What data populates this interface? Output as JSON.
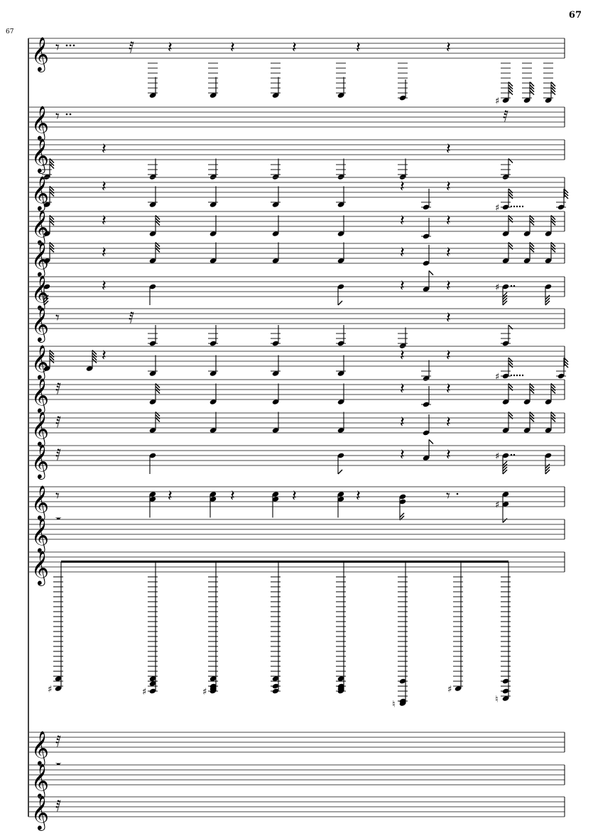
{
  "page_number": "67",
  "measure_number": "67",
  "staves": [
    {
      "clef": "treble",
      "events": [
        {
          "c": 1,
          "rest": "8",
          "dots": 3
        },
        {
          "c": 4,
          "rest": "32"
        },
        {
          "c": 5,
          "d": "q",
          "s": [
            -15
          ]
        },
        {
          "c": 6,
          "rest": "4"
        },
        {
          "c": 7,
          "d": "q",
          "s": [
            -15
          ]
        },
        {
          "c": 8,
          "rest": "4"
        },
        {
          "c": 9,
          "d": "q",
          "s": [
            -15
          ]
        },
        {
          "c": 10,
          "rest": "4"
        },
        {
          "c": 11,
          "d": "q",
          "s": [
            -15
          ]
        },
        {
          "c": 12,
          "rest": "4"
        },
        {
          "c": 13,
          "d": "q",
          "s": [
            -16
          ]
        },
        {
          "c": 15,
          "rest": "4"
        },
        {
          "c": 16,
          "d": "64",
          "s": [
            -17
          ],
          "acc": "sharp"
        },
        {
          "c": 17,
          "d": "64",
          "s": [
            -17
          ]
        },
        {
          "c": 18,
          "d": "64",
          "s": [
            -17
          ]
        }
      ]
    },
    {
      "clef": "treble",
      "events": [
        {
          "c": 1,
          "rest": "8",
          "dots": 2
        },
        {
          "c": 16,
          "rest": "32"
        }
      ]
    },
    {
      "clef": "treble",
      "events": [
        {
          "c": 0,
          "d": "32",
          "s": [
            -7
          ]
        },
        {
          "c": 3,
          "rest": "4"
        },
        {
          "c": 5,
          "d": "q",
          "s": [
            -7
          ]
        },
        {
          "c": 7,
          "d": "q",
          "s": [
            -7
          ]
        },
        {
          "c": 9,
          "d": "q",
          "s": [
            -7
          ]
        },
        {
          "c": 11,
          "d": "q",
          "s": [
            -7
          ]
        },
        {
          "c": 13,
          "d": "q",
          "s": [
            -7
          ]
        },
        {
          "c": 15,
          "rest": "4"
        },
        {
          "c": 16,
          "d": "8",
          "s": [
            -7
          ]
        }
      ]
    },
    {
      "clef": "treble",
      "events": [
        {
          "c": 0,
          "d": "32",
          "s": [
            -3
          ]
        },
        {
          "c": 3,
          "rest": "4"
        },
        {
          "c": 5,
          "d": "q",
          "s": [
            -3
          ]
        },
        {
          "c": 7,
          "d": "q",
          "s": [
            -3
          ]
        },
        {
          "c": 9,
          "d": "q",
          "s": [
            -3
          ]
        },
        {
          "c": 11,
          "d": "q",
          "s": [
            -3
          ]
        },
        {
          "c": 13,
          "rest": "4"
        },
        {
          "c": 14,
          "d": "q",
          "s": [
            -4
          ]
        },
        {
          "c": 15,
          "rest": "4"
        },
        {
          "c": 16,
          "d": "32",
          "s": [
            -4
          ],
          "acc": "sharp",
          "dots": 5
        },
        {
          "c": 20,
          "d": "32",
          "s": [
            -4
          ]
        }
      ]
    },
    {
      "clef": "treble",
      "events": [
        {
          "c": 0,
          "d": "32",
          "s": [
            -1
          ]
        },
        {
          "c": 3,
          "rest": "4"
        },
        {
          "c": 5,
          "d": "32",
          "s": [
            -1
          ]
        },
        {
          "c": 7,
          "d": "q",
          "s": [
            -1
          ]
        },
        {
          "c": 9,
          "d": "q",
          "s": [
            -1
          ]
        },
        {
          "c": 11,
          "d": "q",
          "s": [
            -1
          ]
        },
        {
          "c": 13,
          "rest": "4"
        },
        {
          "c": 14,
          "d": "q",
          "s": [
            -2
          ]
        },
        {
          "c": 15,
          "rest": "4"
        },
        {
          "c": 16,
          "d": "16",
          "s": [
            -1
          ]
        },
        {
          "c": 17,
          "d": "32",
          "s": [
            -1
          ]
        },
        {
          "c": 18,
          "d": "32",
          "s": [
            -1
          ]
        }
      ]
    },
    {
      "clef": "treble",
      "events": [
        {
          "c": 0,
          "d": "32",
          "s": [
            1
          ]
        },
        {
          "c": 3,
          "rest": "4"
        },
        {
          "c": 5,
          "d": "32",
          "s": [
            1
          ]
        },
        {
          "c": 7,
          "d": "q",
          "s": [
            1
          ]
        },
        {
          "c": 9,
          "d": "q",
          "s": [
            1
          ]
        },
        {
          "c": 11,
          "d": "q",
          "s": [
            1
          ]
        },
        {
          "c": 13,
          "rest": "4"
        },
        {
          "c": 14,
          "d": "q",
          "s": [
            0
          ]
        },
        {
          "c": 15,
          "rest": "4"
        },
        {
          "c": 16,
          "d": "16",
          "s": [
            1
          ]
        },
        {
          "c": 17,
          "d": "32",
          "s": [
            1
          ]
        },
        {
          "c": 18,
          "d": "32",
          "s": [
            1
          ]
        }
      ]
    },
    {
      "clef": "treble",
      "events": [
        {
          "c": 0,
          "d": "32",
          "s": [
            4
          ]
        },
        {
          "c": 3,
          "rest": "4"
        },
        {
          "c": 5,
          "d": "q",
          "s": [
            4
          ]
        },
        {
          "c": 11,
          "d": "8",
          "s": [
            4
          ]
        },
        {
          "c": 13,
          "rest": "4"
        },
        {
          "c": 14,
          "d": "8",
          "s": [
            3
          ]
        },
        {
          "c": 15,
          "rest": "4"
        },
        {
          "c": 16,
          "d": "64",
          "s": [
            4
          ],
          "acc": "sharp",
          "dots": 2
        },
        {
          "c": 18,
          "d": "32",
          "s": [
            4
          ]
        }
      ]
    },
    {
      "clef": "treble",
      "events": [
        {
          "c": 1,
          "rest": "8"
        },
        {
          "c": 4,
          "rest": "32"
        },
        {
          "c": 5,
          "d": "q",
          "s": [
            -6
          ]
        },
        {
          "c": 7,
          "d": "q",
          "s": [
            -6
          ]
        },
        {
          "c": 9,
          "d": "q",
          "s": [
            -6
          ]
        },
        {
          "c": 11,
          "d": "q",
          "s": [
            -6
          ]
        },
        {
          "c": 13,
          "d": "q",
          "s": [
            -7
          ]
        },
        {
          "c": 15,
          "rest": "4"
        },
        {
          "c": 16,
          "d": "8",
          "s": [
            -6
          ]
        }
      ]
    },
    {
      "clef": "treble",
      "events": [
        {
          "c": 0,
          "d": "64",
          "s": [
            -1
          ]
        },
        {
          "c": 2,
          "d": "64",
          "s": [
            -1
          ]
        },
        {
          "c": 3,
          "rest": "4"
        },
        {
          "c": 5,
          "d": "q",
          "s": [
            -3
          ]
        },
        {
          "c": 7,
          "d": "q",
          "s": [
            -3
          ]
        },
        {
          "c": 9,
          "d": "q",
          "s": [
            -3
          ]
        },
        {
          "c": 11,
          "d": "q",
          "s": [
            -3
          ]
        },
        {
          "c": 13,
          "rest": "4"
        },
        {
          "c": 14,
          "d": "q",
          "s": [
            -5
          ]
        },
        {
          "c": 15,
          "rest": "4"
        },
        {
          "c": 16,
          "d": "32",
          "s": [
            -4
          ],
          "acc": "sharp",
          "dots": 5
        },
        {
          "c": 20,
          "d": "32",
          "s": [
            -4
          ]
        }
      ]
    },
    {
      "clef": "treble",
      "events": [
        {
          "c": 1,
          "rest": "32"
        },
        {
          "c": 5,
          "d": "32",
          "s": [
            -1
          ]
        },
        {
          "c": 7,
          "d": "q",
          "s": [
            -1
          ]
        },
        {
          "c": 9,
          "d": "q",
          "s": [
            -1
          ]
        },
        {
          "c": 11,
          "d": "q",
          "s": [
            -1
          ]
        },
        {
          "c": 13,
          "rest": "4"
        },
        {
          "c": 14,
          "d": "q",
          "s": [
            -2
          ]
        },
        {
          "c": 15,
          "rest": "4"
        },
        {
          "c": 16,
          "d": "16",
          "s": [
            -1
          ]
        },
        {
          "c": 17,
          "d": "32",
          "s": [
            -1
          ]
        },
        {
          "c": 18,
          "d": "32",
          "s": [
            -1
          ]
        }
      ]
    },
    {
      "clef": "treble",
      "events": [
        {
          "c": 1,
          "rest": "32"
        },
        {
          "c": 5,
          "d": "32",
          "s": [
            1
          ]
        },
        {
          "c": 7,
          "d": "q",
          "s": [
            1
          ]
        },
        {
          "c": 9,
          "d": "q",
          "s": [
            1
          ]
        },
        {
          "c": 11,
          "d": "q",
          "s": [
            1
          ]
        },
        {
          "c": 13,
          "rest": "4"
        },
        {
          "c": 14,
          "d": "q",
          "s": [
            0
          ]
        },
        {
          "c": 15,
          "rest": "4"
        },
        {
          "c": 16,
          "d": "16",
          "s": [
            1
          ]
        },
        {
          "c": 17,
          "d": "32",
          "s": [
            1
          ]
        },
        {
          "c": 18,
          "d": "32",
          "s": [
            1
          ]
        }
      ]
    },
    {
      "clef": "treble",
      "events": [
        {
          "c": 1,
          "rest": "32"
        },
        {
          "c": 5,
          "d": "q",
          "s": [
            4
          ]
        },
        {
          "c": 11,
          "d": "8",
          "s": [
            4
          ]
        },
        {
          "c": 13,
          "rest": "4"
        },
        {
          "c": 14,
          "d": "8",
          "s": [
            3
          ]
        },
        {
          "c": 15,
          "rest": "4"
        },
        {
          "c": 16,
          "d": "64",
          "s": [
            4
          ],
          "acc": "sharp",
          "dots": 2
        },
        {
          "c": 18,
          "d": "32",
          "s": [
            4
          ]
        }
      ]
    },
    {
      "clef": "treble",
      "events": [
        {
          "c": 1,
          "rest": "8"
        },
        {
          "c": 5,
          "d": "q",
          "s": [
            5,
            3
          ]
        },
        {
          "c": 6,
          "rest": "4"
        },
        {
          "c": 7,
          "d": "q",
          "s": [
            5,
            3
          ]
        },
        {
          "c": 8,
          "rest": "4"
        },
        {
          "c": 9,
          "d": "q",
          "s": [
            5,
            3
          ]
        },
        {
          "c": 10,
          "rest": "4"
        },
        {
          "c": 11,
          "d": "q",
          "s": [
            5,
            3
          ]
        },
        {
          "c": 12,
          "rest": "4"
        },
        {
          "c": 13,
          "d": "16",
          "s": [
            4,
            2
          ]
        },
        {
          "c": 15,
          "rest": "8",
          "dots": 1
        },
        {
          "c": 16,
          "d": "8",
          "s": [
            5,
            1
          ],
          "acc": "sharp"
        }
      ]
    },
    {
      "clef": "treble",
      "events": [
        {
          "c": 1,
          "rest": "1"
        }
      ]
    },
    {
      "clef": "treble",
      "beamed": true,
      "events": [
        {
          "c": 1,
          "d": "8",
          "s": [
            -43,
            -47
          ],
          "acc": "sharp"
        },
        {
          "c": 5,
          "d": "8",
          "s": [
            -43,
            -45,
            -48
          ],
          "acc": "sharp"
        },
        {
          "c": 7,
          "d": "8",
          "s": [
            -43,
            -46,
            -47,
            -48
          ],
          "acc": "sharp"
        },
        {
          "c": 9,
          "d": "8",
          "s": [
            -43,
            -46,
            -48
          ]
        },
        {
          "c": 11,
          "d": "8",
          "s": [
            -43,
            -46,
            -47,
            -48
          ]
        },
        {
          "c": 13,
          "d": "8",
          "s": [
            -44,
            -52,
            -53
          ],
          "acc": "natural"
        },
        {
          "c": 19,
          "d": "8",
          "s": [
            -47
          ],
          "acc": "sharp"
        },
        {
          "c": 16,
          "d": "8",
          "s": [
            -44,
            -48,
            -51
          ],
          "acc": "natural"
        }
      ]
    },
    {
      "clef": "treble",
      "events": [
        {
          "c": 1,
          "rest": "32"
        }
      ]
    },
    {
      "clef": "treble",
      "events": [
        {
          "c": 1,
          "rest": "1"
        }
      ]
    },
    {
      "clef": "treble",
      "events": [
        {
          "c": 1,
          "rest": "32"
        }
      ]
    }
  ]
}
